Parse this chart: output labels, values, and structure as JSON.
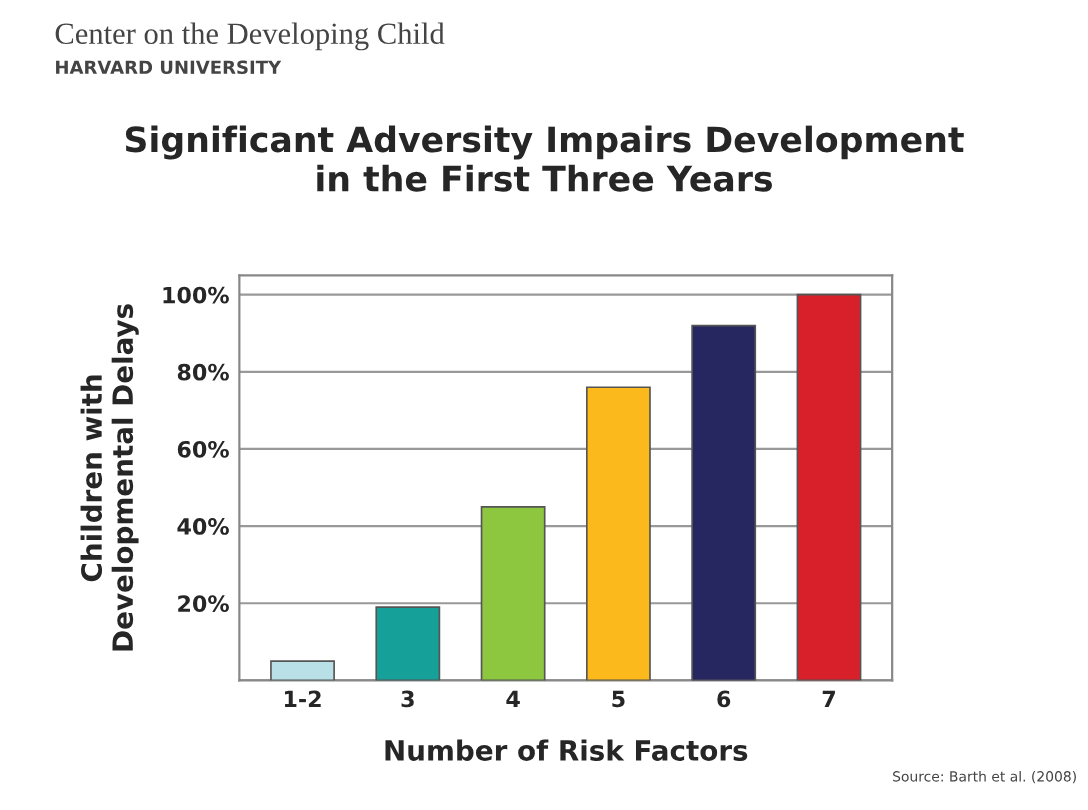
{
  "chart_data": {
    "type": "bar",
    "title": "Significant Adversity Impairs Development\nin the First Three Years",
    "xlabel": "Number of Risk Factors",
    "ylabel": "Children with\nDevelopmental Delays",
    "categories": [
      "1-2",
      "3",
      "4",
      "5",
      "6",
      "7"
    ],
    "values": [
      5,
      19,
      45,
      76,
      92,
      100
    ],
    "colors": [
      "#b8e0e6",
      "#16a09a",
      "#8dc63f",
      "#fbb91b",
      "#262660",
      "#d7202a"
    ],
    "ylim": [
      0,
      105
    ],
    "yticks": [
      {
        "value": 0,
        "label": null
      },
      {
        "value": 20,
        "label": "20%"
      },
      {
        "value": 40,
        "label": "40%"
      },
      {
        "value": 60,
        "label": "60%"
      },
      {
        "value": 80,
        "label": "80%"
      },
      {
        "value": 100,
        "label": "100%"
      }
    ],
    "grid": "y",
    "annotations": [
      "Center on the Developing Child",
      "HARVARD UNIVERSITY",
      "Source: Barth et al. (2008)"
    ]
  }
}
